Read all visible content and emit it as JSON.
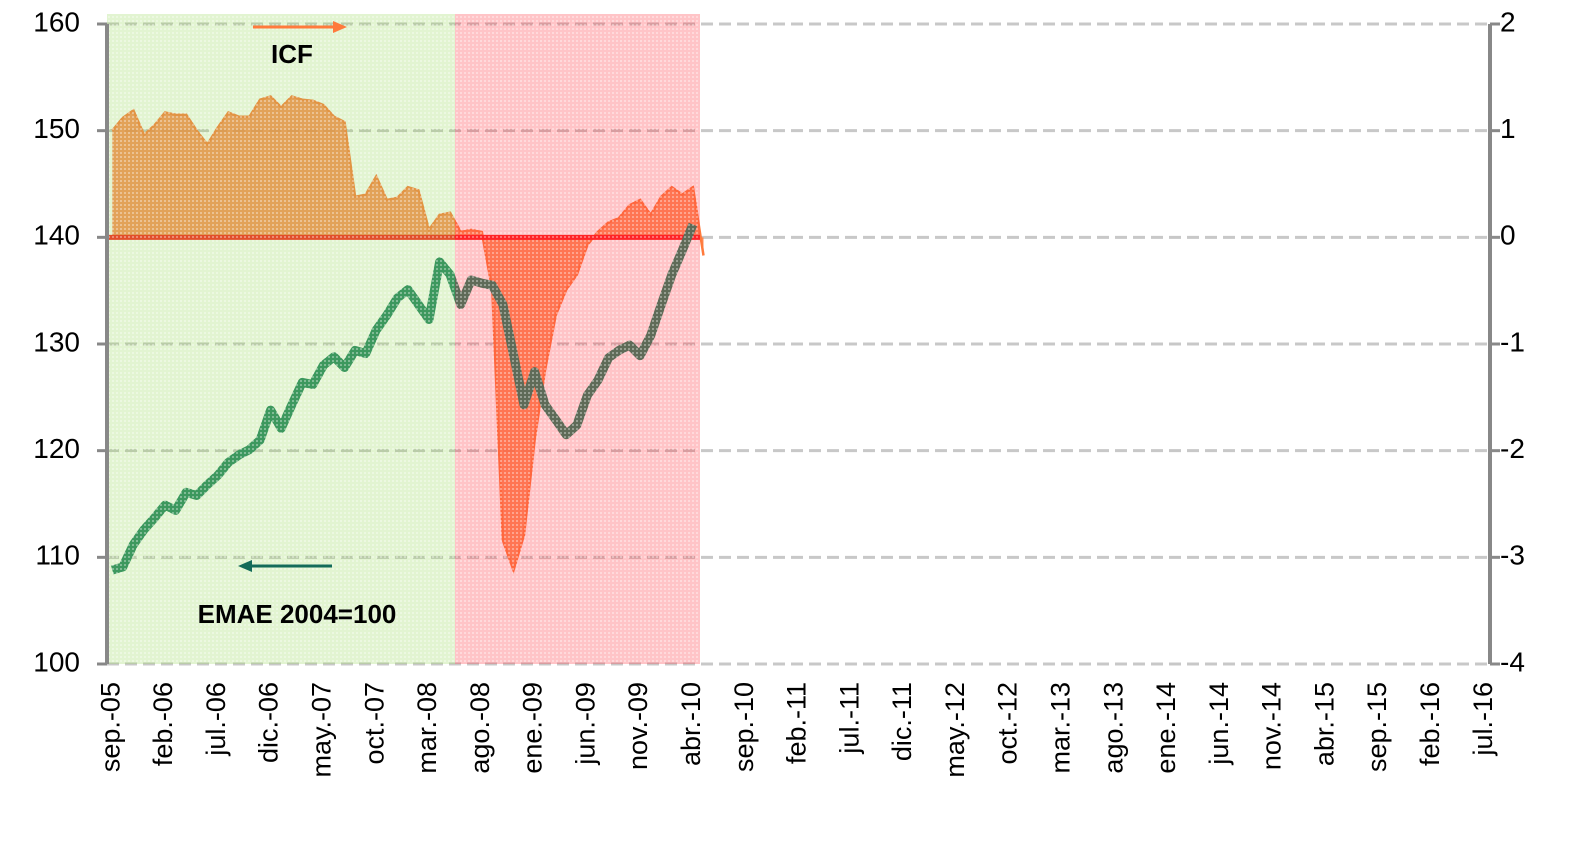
{
  "chart_data": {
    "type": "line",
    "categories": [
      "sep.-05",
      null,
      null,
      null,
      null,
      "feb.-06",
      null,
      null,
      null,
      null,
      "jul.-06",
      null,
      null,
      null,
      null,
      "dic.-06",
      null,
      null,
      null,
      null,
      "may.-07",
      null,
      null,
      null,
      null,
      "oct.-07",
      null,
      null,
      null,
      null,
      "mar.-08",
      null,
      null,
      null,
      null,
      "ago.-08",
      null,
      null,
      null,
      null,
      "ene.-09",
      null,
      null,
      null,
      null,
      "jun.-09",
      null,
      null,
      null,
      null,
      "nov.-09",
      null,
      null,
      null,
      null,
      "abr.-10",
      null,
      null,
      null,
      null,
      "sep.-10",
      null,
      null,
      null,
      null,
      "feb.-11",
      null,
      null,
      null,
      null,
      "jul.-11",
      null,
      null,
      null,
      null,
      "dic.-11",
      null,
      null,
      null,
      null,
      "may.-12",
      null,
      null,
      null,
      null,
      "oct.-12",
      null,
      null,
      null,
      null,
      "mar.-13",
      null,
      null,
      null,
      null,
      "ago.-13",
      null,
      null,
      null,
      null,
      "ene.-14",
      null,
      null,
      null,
      null,
      "jun.-14",
      null,
      null,
      null,
      null,
      "nov.-14",
      null,
      null,
      null,
      null,
      "abr.-15",
      null,
      null,
      null,
      null,
      "sep.-15",
      null,
      null,
      null,
      null,
      "feb.-16",
      null,
      null,
      null,
      null,
      "jul.-16"
    ],
    "series": [
      {
        "name": "EMAE 2004=100",
        "color": "#1b8060",
        "values": [
          108.8,
          109.1,
          111.2,
          112.6,
          113.7,
          114.9,
          114.4,
          116.1,
          115.8,
          116.8,
          117.7,
          118.9,
          119.6,
          120.1,
          121.0,
          123.8,
          122.1,
          124.3,
          126.4,
          126.2,
          128.0,
          128.8,
          127.8,
          129.4,
          129.1,
          131.3,
          132.7,
          134.3,
          135.1,
          133.7,
          132.3,
          137.7,
          136.5,
          133.7,
          136.0,
          135.7,
          135.5,
          133.7,
          129.0,
          124.3,
          127.4,
          124.3,
          122.9,
          121.5,
          122.4,
          125.2,
          126.6,
          128.7,
          129.4,
          129.9,
          128.9,
          130.8,
          133.7,
          136.5,
          138.8,
          141.2,
          null,
          null,
          null,
          null,
          null,
          null,
          null,
          null,
          null,
          null,
          null,
          null,
          null,
          null,
          null,
          null,
          null,
          null,
          null,
          null,
          null,
          null,
          null,
          null,
          null,
          null,
          null,
          null,
          null,
          null,
          null,
          null,
          null,
          null,
          null,
          null,
          null,
          null,
          null,
          null,
          null,
          null,
          null,
          null,
          null,
          null,
          null,
          null,
          null,
          null,
          null,
          null,
          null,
          null,
          null,
          null,
          null,
          null,
          null,
          null,
          null,
          null,
          null,
          null,
          null,
          null,
          null,
          null,
          null,
          null,
          null,
          null,
          null,
          null,
          null
        ]
      },
      {
        "name": "ICF",
        "color": "#ff7a3c",
        "axis": "y2",
        "values": [
          1.0,
          1.12,
          1.19,
          0.96,
          1.05,
          1.17,
          1.15,
          1.15,
          1.0,
          0.87,
          1.03,
          1.17,
          1.13,
          1.13,
          1.29,
          1.32,
          1.22,
          1.32,
          1.29,
          1.28,
          1.24,
          1.13,
          1.08,
          0.38,
          0.4,
          0.57,
          0.35,
          0.37,
          0.47,
          0.44,
          0.07,
          0.21,
          0.23,
          0.05,
          0.07,
          0.05,
          -0.49,
          -2.84,
          -3.12,
          -2.79,
          -1.9,
          -1.24,
          -0.73,
          -0.49,
          -0.35,
          -0.07,
          0.05,
          0.14,
          0.18,
          0.3,
          0.35,
          0.21,
          0.38,
          0.47,
          0.4,
          0.47,
          -0.17,
          null,
          null,
          null,
          null,
          null,
          null,
          null,
          null,
          null,
          null,
          null,
          null,
          null,
          null,
          null,
          null,
          null,
          null,
          null,
          null,
          null,
          null,
          null,
          null,
          null,
          null,
          null,
          null,
          null,
          null,
          null,
          null,
          null,
          null,
          null,
          null,
          null,
          null,
          null,
          null,
          null,
          null,
          null,
          null,
          null,
          null,
          null,
          null,
          null,
          null,
          null,
          null,
          null,
          null,
          null,
          null,
          null,
          null,
          null,
          null,
          null,
          null,
          null,
          null,
          null,
          null,
          null,
          null,
          null,
          null,
          null,
          null,
          null,
          null
        ]
      }
    ],
    "ylim": [
      100,
      160
    ],
    "yticks": [
      100,
      110,
      120,
      130,
      140,
      150,
      160
    ],
    "y2lim": [
      -4,
      2
    ],
    "y2ticks": [
      -4,
      -3,
      -2,
      -1,
      0,
      1,
      2
    ],
    "reference_line": {
      "value": 0,
      "axis": "y2",
      "color": "#ff1a1a"
    },
    "grid": true
  }
}
